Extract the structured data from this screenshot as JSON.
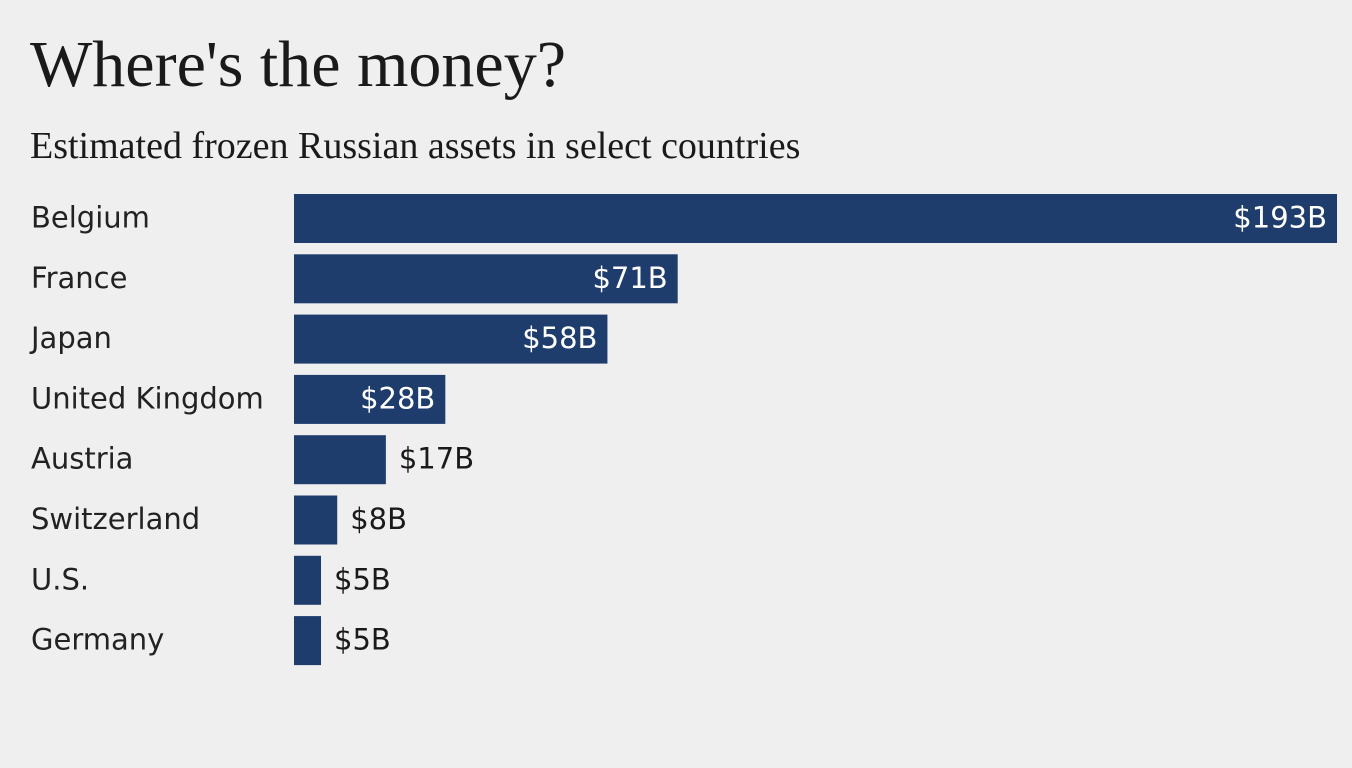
{
  "chart_data": {
    "type": "bar",
    "orientation": "horizontal",
    "title": "Where's the money?",
    "subtitle": "Estimated frozen Russian assets in select countries",
    "categories": [
      "Belgium",
      "France",
      "Japan",
      "United Kingdom",
      "Austria",
      "Switzerland",
      "U.S.",
      "Germany"
    ],
    "values": [
      193,
      71,
      58,
      28,
      17,
      8,
      5,
      5
    ],
    "value_labels": [
      "$193B",
      "$71B",
      "$58B",
      "$28B",
      "$17B",
      "$8B",
      "$5B",
      "$5B"
    ],
    "color": "#1f3d6c"
  }
}
